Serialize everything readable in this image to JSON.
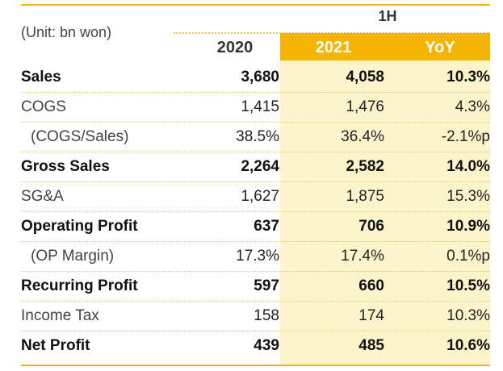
{
  "header": {
    "unit": "(Unit: bn won)",
    "period": "1H",
    "col_2020": "2020",
    "col_2021": "2021",
    "col_yoy": "YoY"
  },
  "rows": [
    {
      "label": "Sales",
      "v2020": "3,680",
      "v2021": "4,058",
      "yoy": "10.3%"
    },
    {
      "label": "COGS",
      "v2020": "1,415",
      "v2021": "1,476",
      "yoy": "4.3%"
    },
    {
      "label": "(COGS/Sales)",
      "v2020": "38.5%",
      "v2021": "36.4%",
      "yoy": "-2.1%p"
    },
    {
      "label": "Gross Sales",
      "v2020": "2,264",
      "v2021": "2,582",
      "yoy": "14.0%"
    },
    {
      "label": "SG&A",
      "v2020": "1,627",
      "v2021": "1,875",
      "yoy": "15.3%"
    },
    {
      "label": "Operating Profit",
      "v2020": "637",
      "v2021": "706",
      "yoy": "10.9%"
    },
    {
      "label": "(OP Margin)",
      "v2020": "17.3%",
      "v2021": "17.4%",
      "yoy": "0.1%p"
    },
    {
      "label": "Recurring Profit",
      "v2020": "597",
      "v2021": "660",
      "yoy": "10.5%"
    },
    {
      "label": "Income Tax",
      "v2020": "158",
      "v2021": "174",
      "yoy": "10.3%"
    },
    {
      "label": "Net Profit",
      "v2020": "439",
      "v2021": "485",
      "yoy": "10.6%"
    }
  ],
  "colors": {
    "accent": "#f5b400",
    "highlight": "#fcf5cc"
  }
}
